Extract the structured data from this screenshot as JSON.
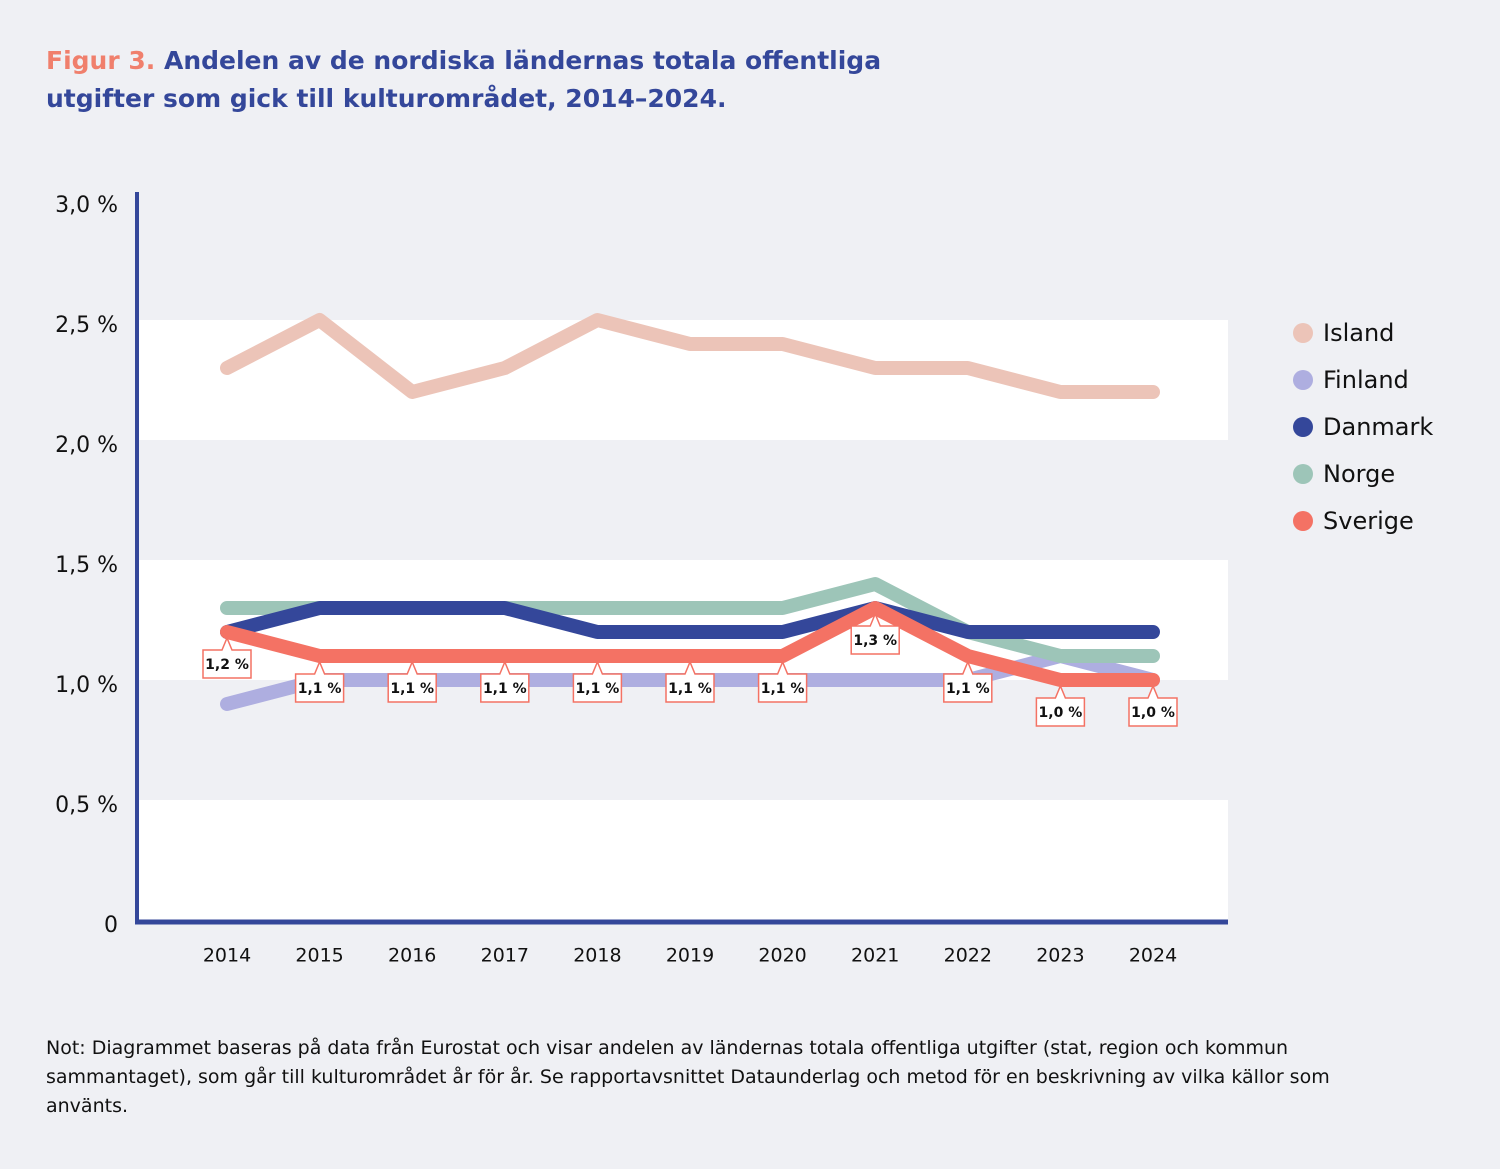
{
  "chart_data": {
    "type": "line",
    "figure_label": "Figur 3.",
    "title": "Andelen av de nordiska ländernas totala offentliga utgifter som gick till kulturområdet, 2014–2024.",
    "note": "Not: Diagrammet baseras på data från Eurostat och visar andelen av ländernas totala offentliga utgifter (stat, region och kommun sammantaget), som går till kulturområdet år för år. Se rapportavsnittet Dataunderlag och metod för en beskrivning av vilka källor som använts.",
    "categories": [
      "2014",
      "2015",
      "2016",
      "2017",
      "2018",
      "2019",
      "2020",
      "2021",
      "2022",
      "2023",
      "2024"
    ],
    "series": [
      {
        "name": "Island",
        "color": "#ecc4b8",
        "values": [
          2.3,
          2.5,
          2.2,
          2.3,
          2.5,
          2.4,
          2.4,
          2.3,
          2.3,
          2.2,
          2.2
        ]
      },
      {
        "name": "Finland",
        "color": "#aeaee0",
        "values": [
          0.9,
          1.0,
          1.0,
          1.0,
          1.0,
          1.0,
          1.0,
          1.0,
          1.0,
          1.1,
          1.0
        ]
      },
      {
        "name": "Danmark",
        "color": "#34479a",
        "values": [
          1.2,
          1.3,
          1.3,
          1.3,
          1.2,
          1.2,
          1.2,
          1.3,
          1.2,
          1.2,
          1.2
        ]
      },
      {
        "name": "Norge",
        "color": "#9dc5b8",
        "values": [
          1.3,
          1.3,
          1.3,
          1.3,
          1.3,
          1.3,
          1.3,
          1.4,
          1.2,
          1.1,
          1.1
        ]
      },
      {
        "name": "Sverige",
        "color": "#f47264",
        "values": [
          1.2,
          1.1,
          1.1,
          1.1,
          1.1,
          1.1,
          1.1,
          1.3,
          1.1,
          1.0,
          1.0
        ],
        "value_labels": [
          "1,2 %",
          "1,1 %",
          "1,1 %",
          "1,1 %",
          "1,1 %",
          "1,1 %",
          "1,1 %",
          "1,3 %",
          "1,1 %",
          "1,0 %",
          "1,0 %"
        ]
      }
    ],
    "ylim": [
      0,
      3.0
    ],
    "yticks": [
      0,
      {
        "value": 0.5,
        "label": "0,5 %"
      },
      {
        "value": 1.0,
        "label": "1,0 %"
      },
      {
        "value": 1.5,
        "label": "1,5 %"
      },
      {
        "value": 2.0,
        "label": "2,0 %"
      },
      {
        "value": 2.5,
        "label": "2,5 %"
      },
      {
        "value": 3.0,
        "label": "3,0 %"
      }
    ],
    "legend": "right"
  }
}
